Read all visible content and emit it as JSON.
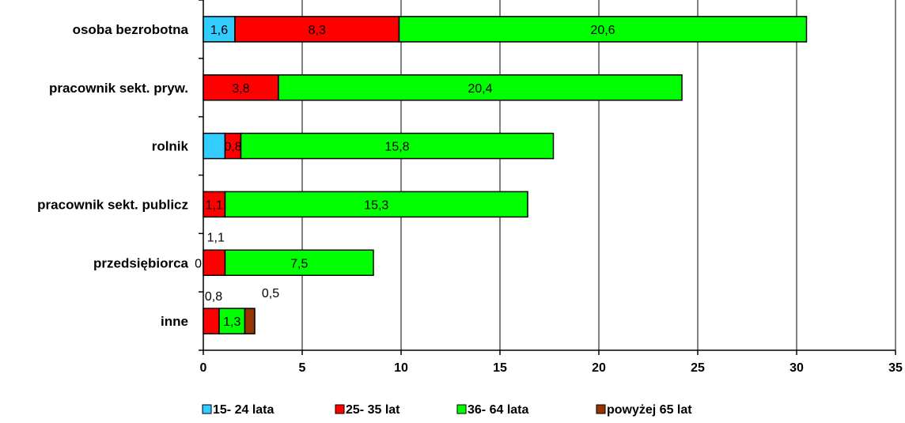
{
  "chart_data": {
    "type": "bar",
    "orientation": "horizontal",
    "stacked": true,
    "categories": [
      "osoba bezrobotna",
      "pracownik sekt. pryw.",
      "rolnik",
      "pracownik sekt. publicz",
      "przedsiębiorca",
      "inne"
    ],
    "series": [
      {
        "name": "15- 24 lata",
        "color": "#33ccff",
        "values": [
          1.6,
          0,
          1.1,
          0,
          0,
          0
        ]
      },
      {
        "name": "25- 35 lat",
        "color": "#ff0000",
        "values": [
          8.3,
          3.8,
          0.8,
          1.1,
          1.1,
          0.8
        ]
      },
      {
        "name": "36- 64 lata",
        "color": "#00ff00",
        "values": [
          20.6,
          20.4,
          15.8,
          15.3,
          7.5,
          1.3
        ]
      },
      {
        "name": "powyżej 65 lat",
        "color": "#993300",
        "values": [
          0,
          0,
          0,
          0,
          0,
          0.5
        ]
      }
    ],
    "data_labels": [
      [
        "1,6",
        "",
        "",
        "",
        "",
        ""
      ],
      [
        "8,3",
        "3,8",
        "0,8",
        "1,1",
        "1,1",
        "0,8"
      ],
      [
        "20,6",
        "20,4",
        "15,8",
        "15,3",
        "7,5",
        "1,3"
      ],
      [
        "",
        "",
        "",
        "",
        "",
        "0,5"
      ]
    ],
    "extra_labels": [
      {
        "category": 4,
        "text": "0"
      }
    ],
    "xlim": [
      0,
      35
    ],
    "x_ticks": [
      0,
      5,
      10,
      15,
      20,
      25,
      30,
      35
    ],
    "x_tick_labels": [
      "0",
      "5",
      "10",
      "15",
      "20",
      "25",
      "30",
      "35"
    ],
    "grid": "vertical",
    "legend_position": "bottom"
  }
}
